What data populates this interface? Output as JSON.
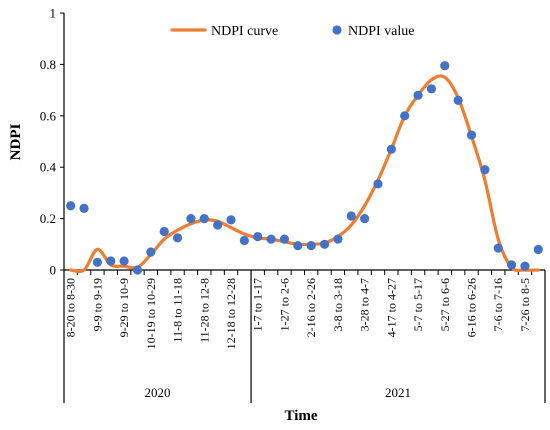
{
  "chart_data": {
    "type": "line",
    "title": "",
    "xlabel": "Time",
    "ylabel": "NDPI",
    "ylim": [
      0,
      1
    ],
    "yticks": [
      "0",
      "0.2",
      "0.4",
      "0.6",
      "0.8",
      "1"
    ],
    "grid": false,
    "legend_position": "top-center",
    "curve_color": "#ED7D31",
    "point_color": "#4472C4",
    "categories": [
      "8-20 to 8-30",
      "",
      "9-9 to 9-19",
      "",
      "9-29 to 10-9",
      "",
      "10-19 to 10-29",
      "",
      "11-8 to 11-18",
      "",
      "11-28 to 12-8",
      "",
      "12-18 to 12-28",
      "",
      "1-7 to 1-17",
      "",
      "1-27 to 2-6",
      "",
      "2-16 to 2-26",
      "",
      "3-8 to 3-18",
      "",
      "3-28 to 4-7",
      "",
      "4-17 to 4-27",
      "",
      "5-7 to 5-17",
      "",
      "5-27 to 6-6",
      "",
      "6-16 to 6-26",
      "",
      "7-6 to 7-16",
      "",
      "7-26 to 8-5",
      ""
    ],
    "groups": [
      {
        "label": "2020",
        "start": 0,
        "end": 13
      },
      {
        "label": "2021",
        "start": 14,
        "end": 35
      }
    ],
    "series": [
      {
        "name": "NDPI curve",
        "style": "line",
        "values": [
          0.0,
          0.0,
          0.08,
          0.02,
          0.015,
          0.01,
          0.06,
          0.12,
          0.155,
          0.18,
          0.195,
          0.19,
          0.165,
          0.14,
          0.125,
          0.12,
          0.11,
          0.1,
          0.1,
          0.105,
          0.13,
          0.175,
          0.25,
          0.35,
          0.47,
          0.6,
          0.68,
          0.74,
          0.75,
          0.67,
          0.52,
          0.35,
          0.12,
          0.01,
          0.0,
          0.0
        ]
      },
      {
        "name": "NDPI value",
        "style": "scatter",
        "values": [
          0.25,
          0.24,
          0.03,
          0.035,
          0.035,
          0.0,
          0.07,
          0.15,
          0.125,
          0.2,
          0.2,
          0.175,
          0.195,
          0.115,
          0.13,
          0.12,
          0.12,
          0.095,
          0.095,
          0.1,
          0.12,
          0.21,
          0.2,
          0.335,
          0.47,
          0.6,
          0.68,
          0.705,
          0.795,
          0.66,
          0.525,
          0.39,
          0.085,
          0.02,
          0.015,
          0.08
        ]
      }
    ]
  }
}
